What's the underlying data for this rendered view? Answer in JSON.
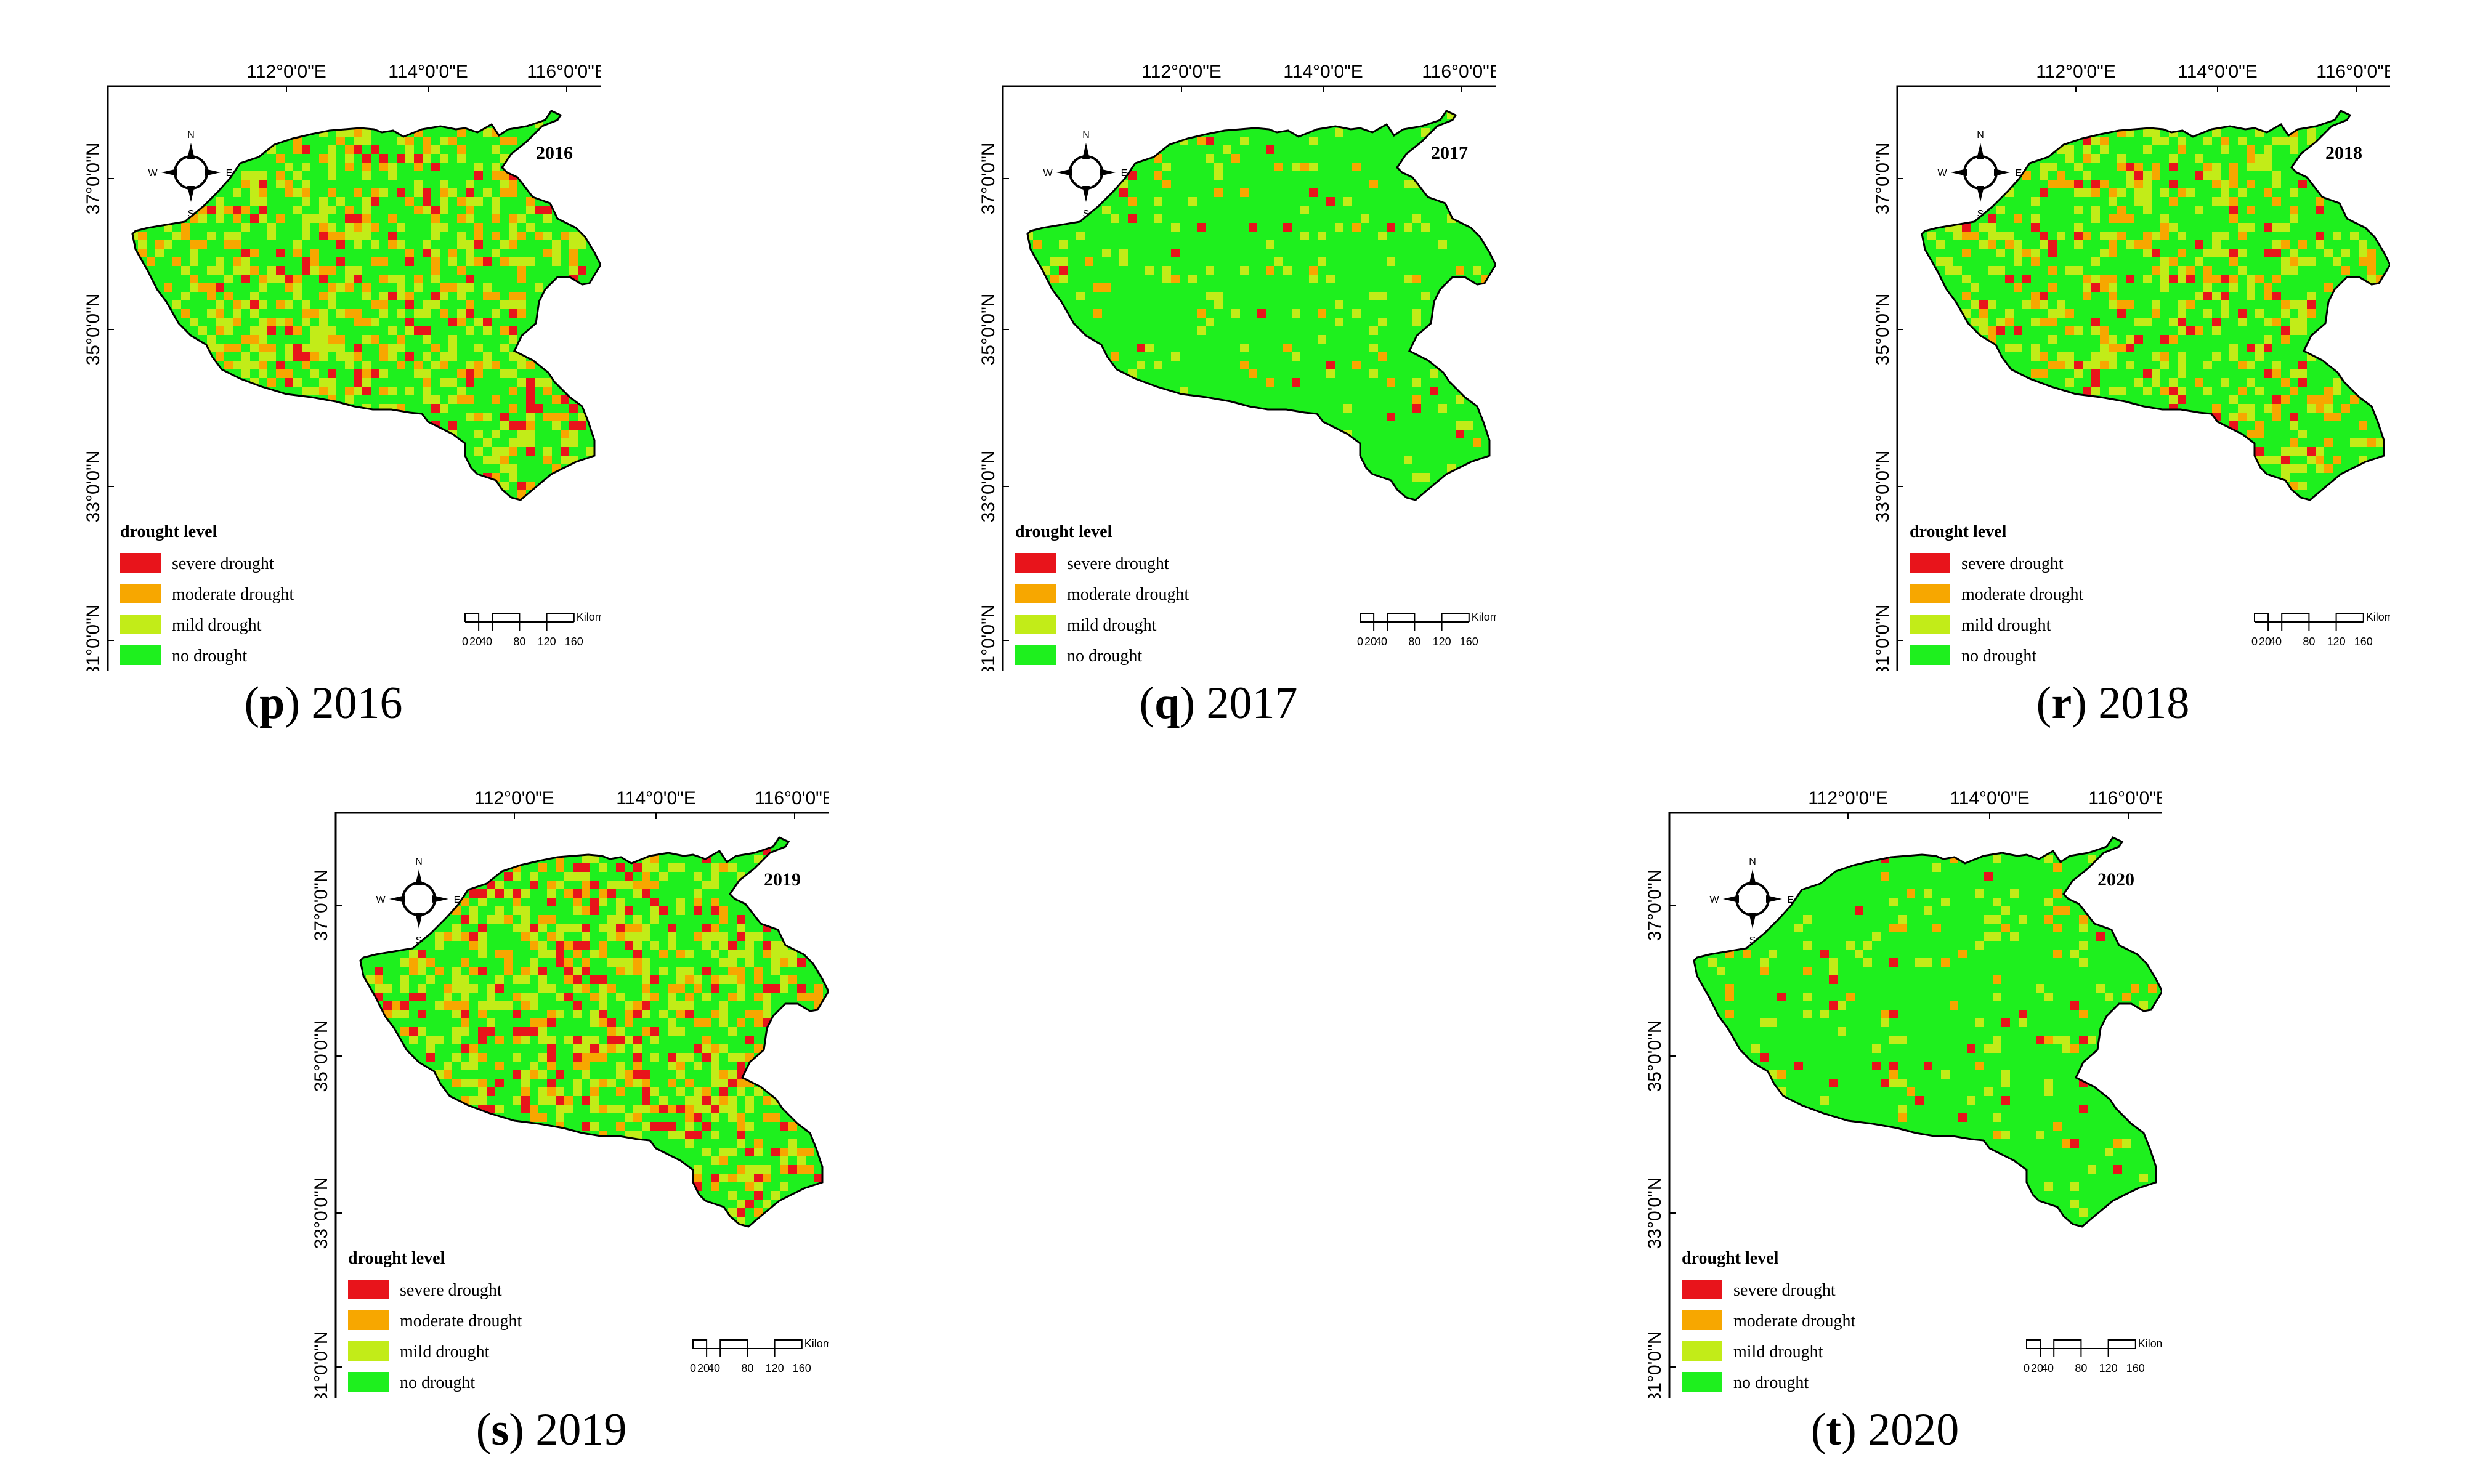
{
  "lon_labels": [
    "112°0'0\"E",
    "114°0'0\"E",
    "116°0'0\"E"
  ],
  "lat_labels": [
    "31°0'0\"N",
    "33°0'0\"N",
    "35°0'0\"N",
    "37°0'0\"N"
  ],
  "compass": {
    "n": "N",
    "s": "S",
    "e": "E",
    "w": "W"
  },
  "legend": {
    "title": "drought level",
    "items": [
      {
        "label": "severe drought",
        "color": "#e8141b"
      },
      {
        "label": "moderate drought",
        "color": "#f7a700"
      },
      {
        "label": "mild drought",
        "color": "#c2ec18"
      },
      {
        "label": "no drought",
        "color": "#1ef01e"
      }
    ]
  },
  "scalebar": {
    "unit": "Kilometers",
    "ticks": [
      "0",
      "20",
      "40",
      "80",
      "120",
      "160"
    ]
  },
  "panels": [
    {
      "letter": "p",
      "year": "2016",
      "caption_year": "2016",
      "severe": 0.06,
      "moderate": 0.14,
      "mild": 0.22
    },
    {
      "letter": "q",
      "year": "2017",
      "caption_year": "2017",
      "severe": 0.02,
      "moderate": 0.03,
      "mild": 0.08
    },
    {
      "letter": "r",
      "year": "2018",
      "caption_year": "2018",
      "severe": 0.05,
      "moderate": 0.12,
      "mild": 0.2
    },
    {
      "letter": "s",
      "year": "2019",
      "caption_year": "2019",
      "severe": 0.1,
      "moderate": 0.14,
      "mild": 0.24
    },
    {
      "letter": "t",
      "year": "2020",
      "caption_year": "2020",
      "severe": 0.02,
      "moderate": 0.03,
      "mild": 0.07
    }
  ]
}
